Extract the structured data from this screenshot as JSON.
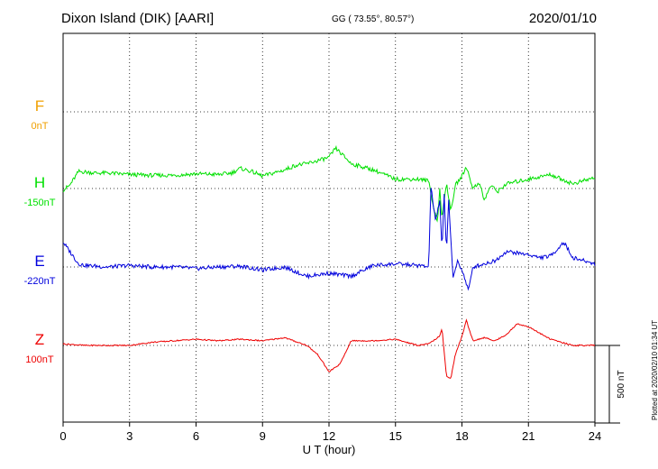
{
  "header": {
    "station": "Dixon Island (DIK)  [AARI]",
    "coords": "GG ( 73.55°,  80.57°)",
    "date": "2020/01/10"
  },
  "footer": {
    "plotted": "Plotted at 2020/02/10 01:34 UT"
  },
  "colors": {
    "F": "#f0a000",
    "H": "#00e000",
    "E": "#0000dd",
    "Z": "#ee0000"
  },
  "chart_data": {
    "type": "line",
    "xlabel": "U T (hour)",
    "xlim": [
      0,
      24
    ],
    "xticks": [
      0,
      3,
      6,
      9,
      12,
      15,
      18,
      21,
      24
    ],
    "scale_bar": "500 nT",
    "series": [
      {
        "name": "F",
        "baseline": "0nT",
        "points": []
      },
      {
        "name": "H",
        "baseline": "-150nT",
        "points": [
          [
            0,
            -10
          ],
          [
            0.3,
            20
          ],
          [
            0.7,
            110
          ],
          [
            1.5,
            100
          ],
          [
            2,
            100
          ],
          [
            3,
            90
          ],
          [
            4,
            85
          ],
          [
            5,
            85
          ],
          [
            6,
            95
          ],
          [
            7,
            90
          ],
          [
            7.6,
            100
          ],
          [
            8,
            130
          ],
          [
            8.5,
            110
          ],
          [
            9,
            80
          ],
          [
            9.5,
            100
          ],
          [
            10,
            120
          ],
          [
            10.5,
            150
          ],
          [
            11,
            160
          ],
          [
            11.5,
            180
          ],
          [
            12,
            200
          ],
          [
            12.3,
            260
          ],
          [
            12.8,
            190
          ],
          [
            13,
            160
          ],
          [
            14,
            120
          ],
          [
            15,
            60
          ],
          [
            16,
            60
          ],
          [
            16.5,
            50
          ],
          [
            16.7,
            -110
          ],
          [
            16.9,
            -220
          ],
          [
            17.0,
            0
          ],
          [
            17.1,
            -200
          ],
          [
            17.3,
            40
          ],
          [
            17.5,
            -150
          ],
          [
            17.7,
            20
          ],
          [
            18,
            80
          ],
          [
            18.2,
            140
          ],
          [
            18.5,
            0
          ],
          [
            18.8,
            40
          ],
          [
            19,
            -80
          ],
          [
            19.3,
            20
          ],
          [
            19.6,
            -20
          ],
          [
            20,
            30
          ],
          [
            21,
            60
          ],
          [
            22,
            90
          ],
          [
            23,
            30
          ],
          [
            24,
            70
          ]
        ]
      },
      {
        "name": "E",
        "baseline": "-220nT",
        "points": [
          [
            0,
            160
          ],
          [
            0.3,
            100
          ],
          [
            0.7,
            20
          ],
          [
            1,
            10
          ],
          [
            2,
            0
          ],
          [
            3,
            10
          ],
          [
            4,
            0
          ],
          [
            5,
            0
          ],
          [
            6,
            -10
          ],
          [
            7,
            0
          ],
          [
            8,
            5
          ],
          [
            9,
            -20
          ],
          [
            10,
            0
          ],
          [
            11,
            -60
          ],
          [
            12,
            -40
          ],
          [
            13,
            -60
          ],
          [
            14,
            10
          ],
          [
            15,
            20
          ],
          [
            16,
            10
          ],
          [
            16.5,
            0
          ],
          [
            16.6,
            520
          ],
          [
            16.8,
            300
          ],
          [
            17.0,
            420
          ],
          [
            17.1,
            100
          ],
          [
            17.2,
            480
          ],
          [
            17.3,
            90
          ],
          [
            17.4,
            440
          ],
          [
            17.6,
            -80
          ],
          [
            17.8,
            40
          ],
          [
            18,
            -20
          ],
          [
            18.3,
            -150
          ],
          [
            18.5,
            0
          ],
          [
            19,
            20
          ],
          [
            19.5,
            40
          ],
          [
            20,
            100
          ],
          [
            21,
            80
          ],
          [
            21.5,
            60
          ],
          [
            22,
            70
          ],
          [
            22.6,
            160
          ],
          [
            23,
            60
          ],
          [
            24,
            20
          ]
        ]
      },
      {
        "name": "Z",
        "baseline": "100nT",
        "points": [
          [
            0,
            10
          ],
          [
            1,
            0
          ],
          [
            2,
            0
          ],
          [
            3,
            0
          ],
          [
            4,
            20
          ],
          [
            5,
            30
          ],
          [
            6,
            40
          ],
          [
            7,
            30
          ],
          [
            8,
            40
          ],
          [
            9,
            30
          ],
          [
            10,
            50
          ],
          [
            11,
            0
          ],
          [
            11.5,
            -60
          ],
          [
            12,
            -170
          ],
          [
            12.5,
            -120
          ],
          [
            13,
            30
          ],
          [
            14,
            30
          ],
          [
            15,
            40
          ],
          [
            16,
            0
          ],
          [
            16.5,
            10
          ],
          [
            17,
            60
          ],
          [
            17.1,
            110
          ],
          [
            17.3,
            -200
          ],
          [
            17.5,
            -210
          ],
          [
            17.7,
            -60
          ],
          [
            18,
            60
          ],
          [
            18.2,
            160
          ],
          [
            18.5,
            30
          ],
          [
            19,
            50
          ],
          [
            19.5,
            30
          ],
          [
            20,
            70
          ],
          [
            20.5,
            140
          ],
          [
            21,
            120
          ],
          [
            22,
            40
          ],
          [
            23,
            0
          ],
          [
            24,
            0
          ]
        ]
      }
    ]
  }
}
